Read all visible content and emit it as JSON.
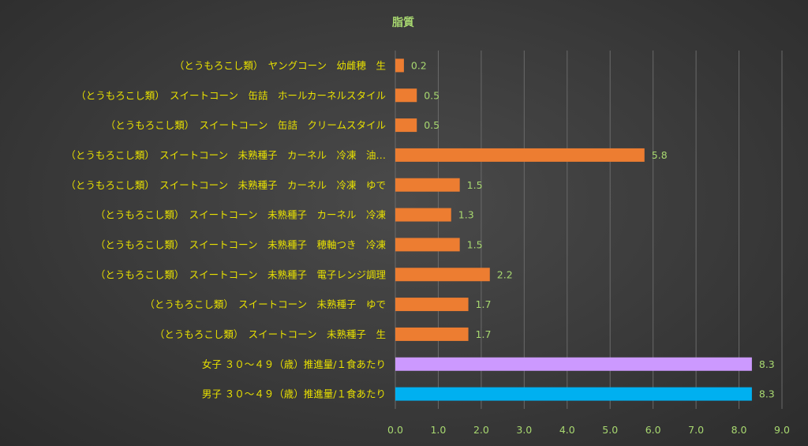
{
  "chart_data": {
    "type": "bar",
    "orientation": "horizontal",
    "title": "脂質",
    "categories": [
      "（とうもろこし類）　ヤングコーン　幼雌穂　生",
      "（とうもろこし類）　スイートコーン　缶詰　ホールカーネルスタイル",
      "（とうもろこし類）　スイートコーン　缶詰　クリームスタイル",
      "（とうもろこし類）　スイートコーン　未熟種子　カーネル　冷凍　油…",
      "（とうもろこし類）　スイートコーン　未熟種子　カーネル　冷凍　ゆで",
      "（とうもろこし類）　スイートコーン　未熟種子　カーネル　冷凍",
      "（とうもろこし類）　スイートコーン　未熟種子　穂軸つき　冷凍",
      "（とうもろこし類）　スイートコーン　未熟種子　電子レンジ調理",
      "（とうもろこし類）　スイートコーン　未熟種子　ゆで",
      "（とうもろこし類）　スイートコーン　未熟種子　生",
      "女子 ３０～４９（歳）推進量/１食あたり",
      "男子 ３０～４９（歳）推進量/１食あたり"
    ],
    "values": [
      0.2,
      0.5,
      0.5,
      5.8,
      1.5,
      1.3,
      1.5,
      2.2,
      1.7,
      1.7,
      8.3,
      8.3
    ],
    "value_labels": [
      "0.2",
      "0.5",
      "0.5",
      "5.8",
      "1.5",
      "1.3",
      "1.5",
      "2.2",
      "1.7",
      "1.7",
      "8.3",
      "8.3"
    ],
    "bar_colors": [
      "#ed7d31",
      "#ed7d31",
      "#ed7d31",
      "#ed7d31",
      "#ed7d31",
      "#ed7d31",
      "#ed7d31",
      "#ed7d31",
      "#ed7d31",
      "#ed7d31",
      "#cc99ff",
      "#00b0f0"
    ],
    "xlim": [
      0,
      9
    ],
    "xticks": [
      "0.0",
      "1.0",
      "2.0",
      "3.0",
      "4.0",
      "5.0",
      "6.0",
      "7.0",
      "8.0",
      "9.0"
    ],
    "grid": "vertical",
    "colors": {
      "category_label": "#e8e000",
      "value_label": "#a8d870",
      "tick_label": "#a8d870",
      "title": "#a8d870",
      "gridline": "#6a6a6a"
    }
  }
}
